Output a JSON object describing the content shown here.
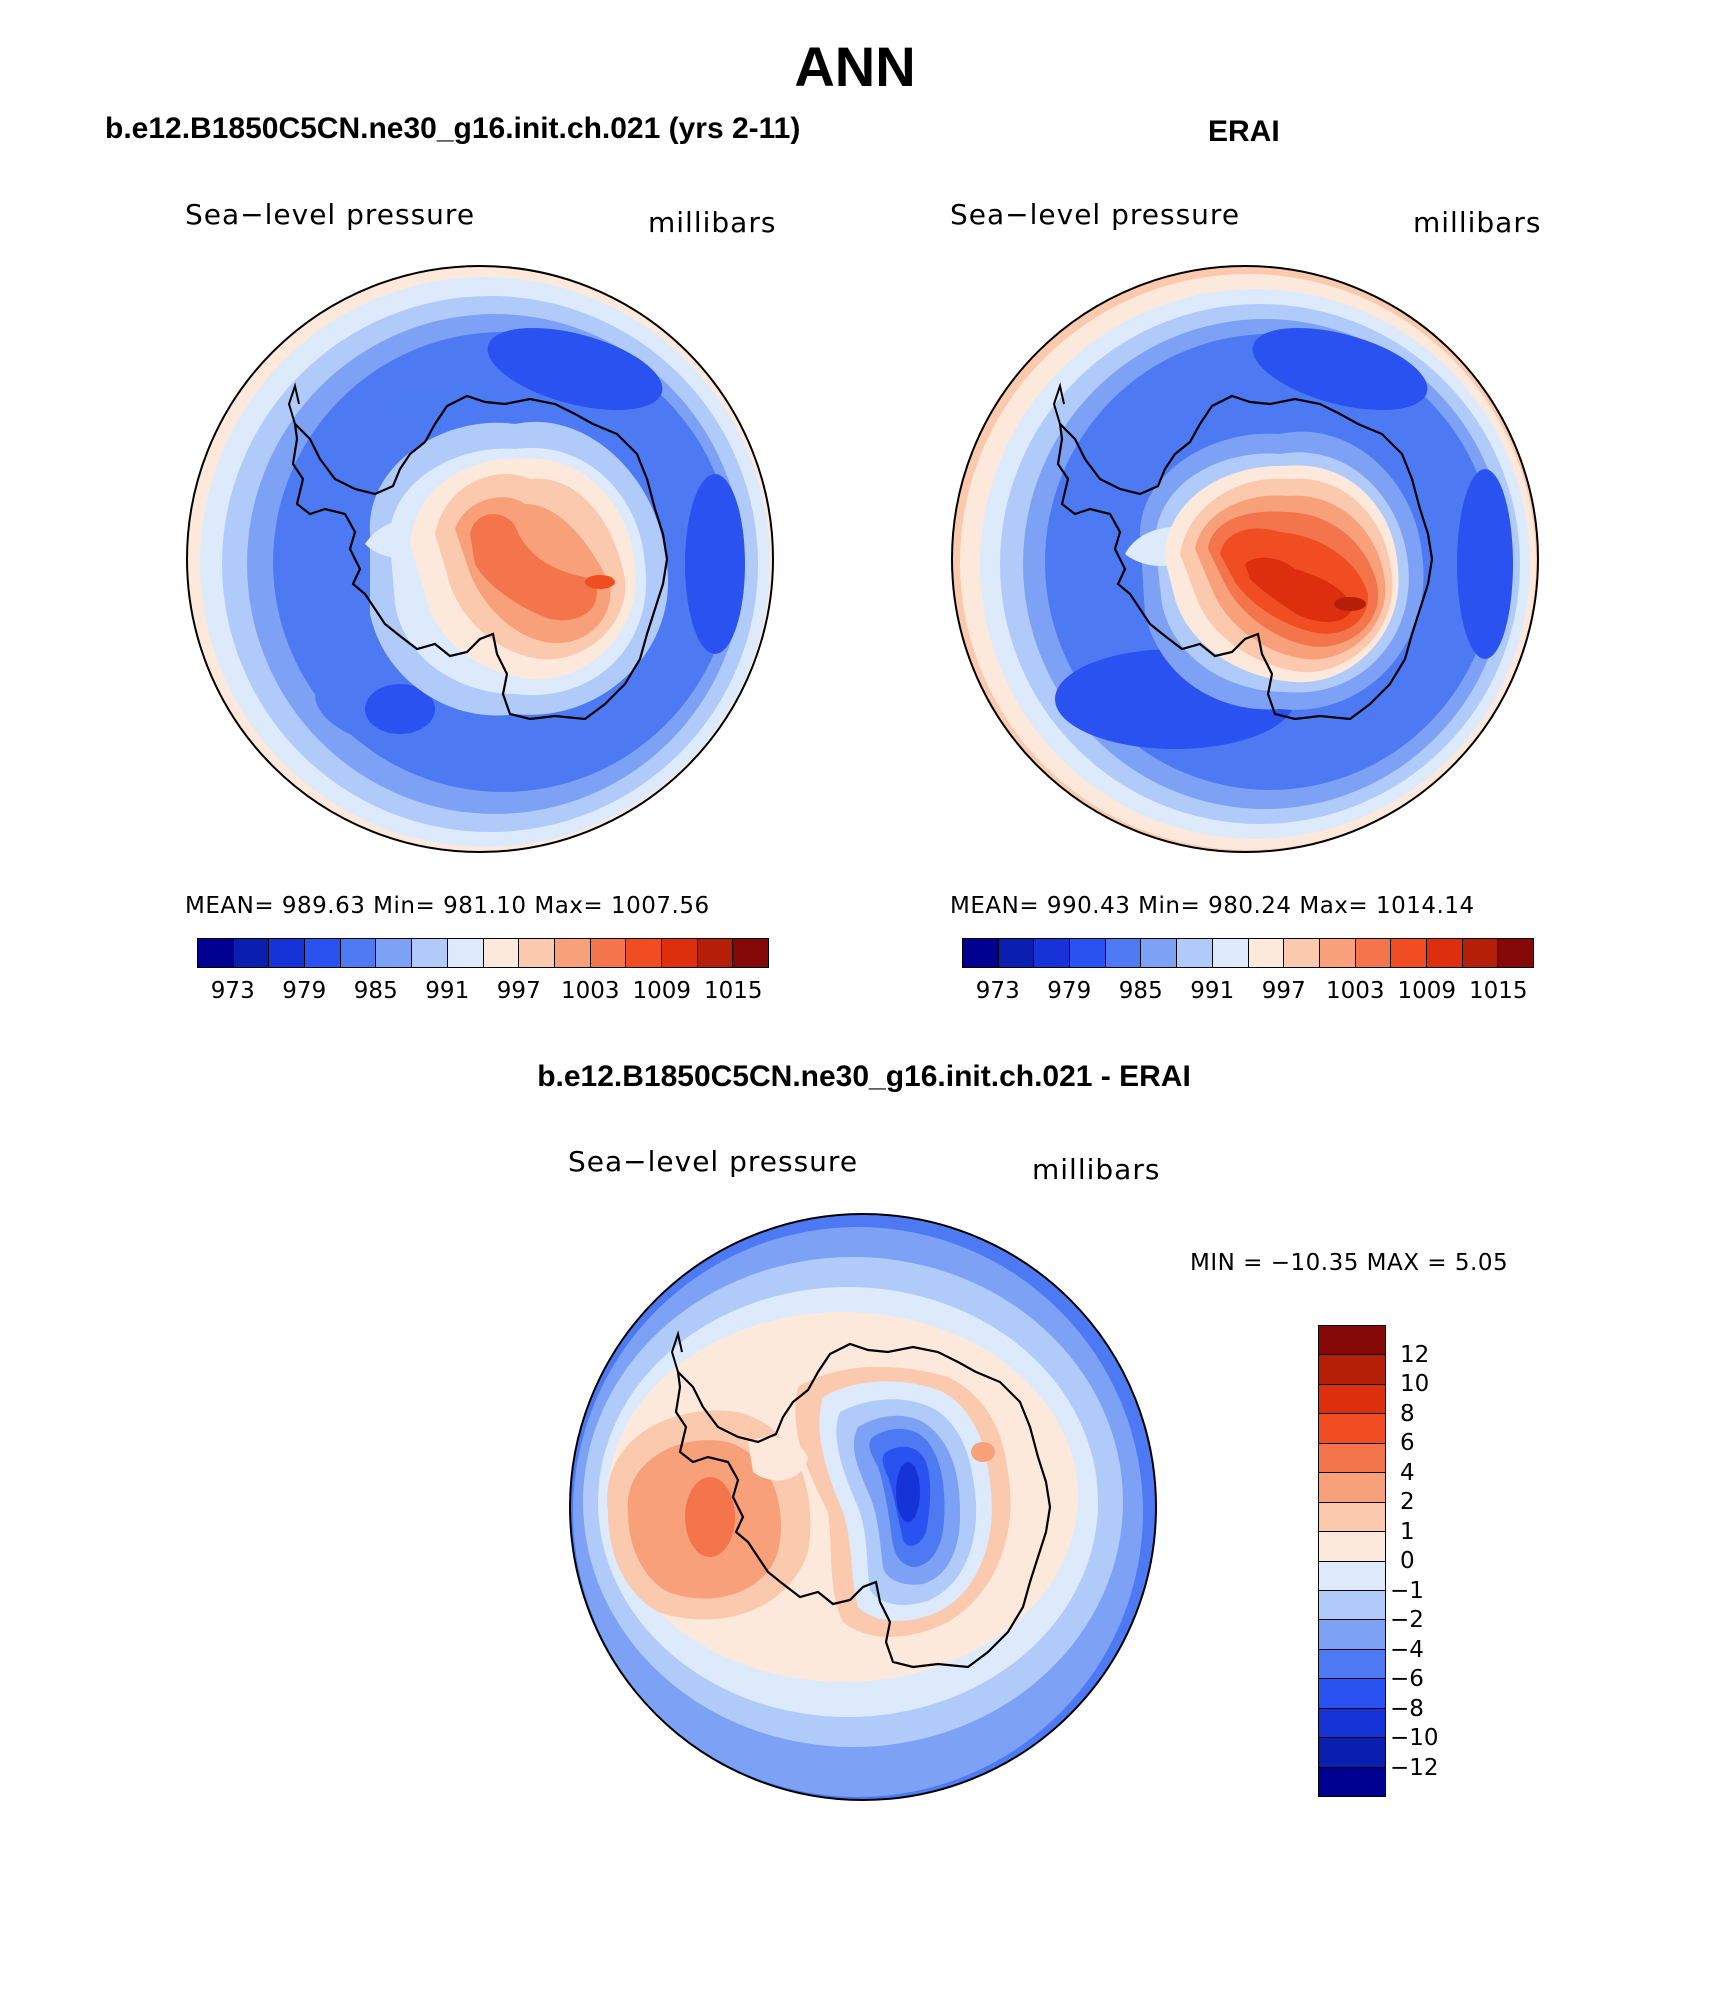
{
  "title": "ANN",
  "panels": {
    "model": {
      "title": "b.e12.B1850C5CN.ne30_g16.init.ch.021 (yrs 2-11)",
      "left_label": "Sea−level pressure",
      "right_label": "millibars",
      "stats": "MEAN=  989.63    Min=  981.10    Max=  1007.56"
    },
    "obs": {
      "title": "ERAI",
      "left_label": "Sea−level pressure",
      "right_label": "millibars",
      "stats": "MEAN=  990.43    Min=  980.24    Max=  1014.14"
    },
    "diff": {
      "title": "b.e12.B1850C5CN.ne30_g16.init.ch.021 - ERAI",
      "left_label": "Sea−level pressure",
      "right_label": "millibars",
      "stats": "MIN  =  −10.35  MAX  =     5.05"
    }
  },
  "colorbar_abs": {
    "colors": [
      "#000090",
      "#0a1fb0",
      "#1633d8",
      "#2a52f0",
      "#4d7af2",
      "#7da2f5",
      "#b0cbf9",
      "#dceafb",
      "#fde9dc",
      "#fbc9ad",
      "#f7a07a",
      "#f4754b",
      "#f04e22",
      "#dd2e0e",
      "#b51f08",
      "#850808"
    ],
    "ticks": [
      "973",
      "979",
      "985",
      "991",
      "997",
      "1003",
      "1009",
      "1015"
    ]
  },
  "colorbar_diff": {
    "colors": [
      "#850808",
      "#b51f08",
      "#dd2e0e",
      "#f04e22",
      "#f4754b",
      "#f7a07a",
      "#fbc9ad",
      "#fde9dc",
      "#dceafb",
      "#b0cbf9",
      "#7da2f5",
      "#4d7af2",
      "#2a52f0",
      "#1633d8",
      "#0a1fb0",
      "#000090"
    ],
    "ticks": [
      "12",
      "10",
      "8",
      "6",
      "4",
      "2",
      "1",
      "0",
      "−1",
      "−2",
      "−4",
      "−6",
      "−8",
      "−10",
      "−12"
    ]
  }
}
